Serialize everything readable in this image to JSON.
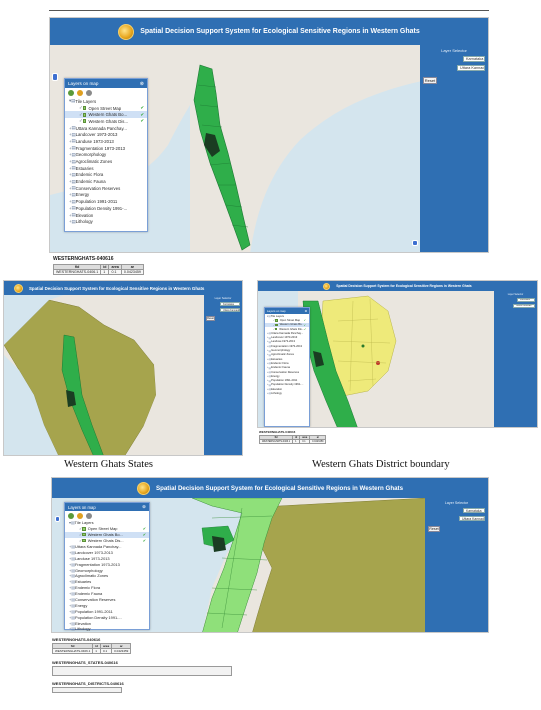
{
  "app": {
    "title": "Spatial Decision Support System for Ecological Sensitive Regions in Western Ghats"
  },
  "side_panel": {
    "title": "Layer Selector",
    "select1_value": "Karnataka",
    "select2_value": "Uttara Kannada",
    "button_label": "Reset"
  },
  "layers_panel": {
    "title": "Layers on map",
    "items": [
      {
        "label": "Tile Layers",
        "kind": "folder"
      },
      {
        "label": "Open Street Map",
        "kind": "layer",
        "checked": true
      },
      {
        "label": "Western Ghats Bo...",
        "kind": "layer",
        "checked": true,
        "selected": true
      },
      {
        "label": "Western Ghats Dis...",
        "kind": "layer",
        "checked": true
      },
      {
        "label": "Uttara Kannada Panchay...",
        "kind": "group"
      },
      {
        "label": "Landcover 1973-2013",
        "kind": "group"
      },
      {
        "label": "Landuse 1973-2013",
        "kind": "group"
      },
      {
        "label": "Fragmentation 1973-2013",
        "kind": "group"
      },
      {
        "label": "Geomorphology",
        "kind": "group"
      },
      {
        "label": "Agroclimatic Zones",
        "kind": "group"
      },
      {
        "label": "Estuaries",
        "kind": "group"
      },
      {
        "label": "Endemic Flora",
        "kind": "group"
      },
      {
        "label": "Endemic Fauna",
        "kind": "group"
      },
      {
        "label": "Conservation Reserves",
        "kind": "group"
      },
      {
        "label": "Energy",
        "kind": "group"
      },
      {
        "label": "Population 1991-2011",
        "kind": "group"
      },
      {
        "label": "Population Density 1991-...",
        "kind": "group"
      },
      {
        "label": "Elevation",
        "kind": "group"
      },
      {
        "label": "Lithology",
        "kind": "group"
      }
    ]
  },
  "feature_info": {
    "title": "WESTERNGHATS-040616",
    "columns": [
      "fid",
      "id",
      "area",
      "ar"
    ],
    "row": [
      "WESTERNGHATS-0406.1",
      "1",
      "0.1",
      "0.0423459"
    ]
  },
  "feature_info_2": {
    "title": "WESTERNGHATS_STATES-040616",
    "title_b": "WESTERNGHATS_DISTRICTS-040616"
  },
  "captions": {
    "left": "Western Ghats States",
    "right": "Western Ghats District boundary"
  },
  "colors": {
    "header_blue": "#2f6fb3",
    "map_base": "#eae6df",
    "sea": "#d4e5ee",
    "ghats_green": "#2fae4a",
    "ghats_dark": "#1a5b2a",
    "states_olive": "#a6a44d",
    "district_yellow": "#eeea7a"
  }
}
